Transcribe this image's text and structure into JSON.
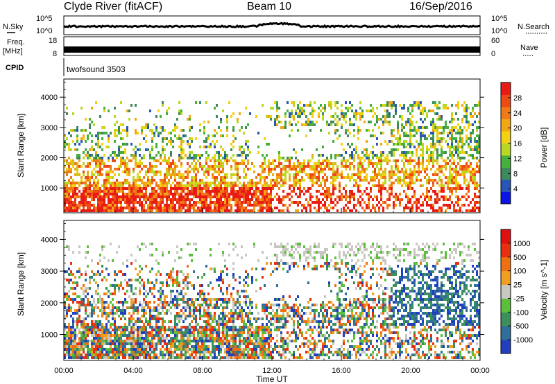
{
  "header": {
    "site": "Clyde River (fitACF)",
    "beam": "Beam 10",
    "date": "16/Sep/2016"
  },
  "top_panels": {
    "nsky_label": "N.Sky",
    "nsky_ticks": [
      "10^5",
      "10^0"
    ],
    "nsearch_label": "N.Search",
    "nsearch_ticks": [
      "10^5",
      "10^0"
    ],
    "freq_label_1": "Freq.",
    "freq_label_2": "[MHz]",
    "freq_ticks": [
      "18",
      "8"
    ],
    "nave_label": "Nave",
    "nave_ticks": [
      "60",
      "0"
    ],
    "cpid_label": "CPID",
    "cpid_value": "twofsound 3503"
  },
  "chart_data": [
    {
      "type": "heatmap",
      "name": "power",
      "ylabel": "Slant Range [km]",
      "xlabel": "",
      "y_ticks": [
        "1000",
        "2000",
        "3000",
        "4000"
      ],
      "x_ticks": [
        "00:00",
        "04:00",
        "08:00",
        "12:00",
        "16:00",
        "20:00",
        "00:00"
      ],
      "colorbar": {
        "label": "Power [dB]",
        "ticks": [
          "4",
          "8",
          "12",
          "16",
          "20",
          "24",
          "28"
        ],
        "colors": [
          "#0a14e6",
          "#2a55b8",
          "#3f8a5c",
          "#45b13c",
          "#b8d824",
          "#f2d212",
          "#f2a814",
          "#f07a16",
          "#ee4a16",
          "#e81c14"
        ]
      }
    },
    {
      "type": "heatmap",
      "name": "velocity",
      "ylabel": "Slant Range [km]",
      "xlabel": "Time UT",
      "y_ticks": [
        "1000",
        "2000",
        "3000",
        "4000"
      ],
      "x_ticks": [
        "00:00",
        "04:00",
        "08:00",
        "12:00",
        "16:00",
        "20:00",
        "00:00"
      ],
      "colorbar": {
        "label": "Velocity [m s^-1]",
        "ticks": [
          "1000",
          "500",
          "100",
          "25",
          "-25",
          "-100",
          "-500",
          "-1000"
        ],
        "colors": [
          "#2040c0",
          "#2f6f9a",
          "#3c8f5a",
          "#5cbf3c",
          "#c8c8c0",
          "#f0a020",
          "#ef7010",
          "#e83010",
          "#e01010"
        ]
      }
    }
  ]
}
